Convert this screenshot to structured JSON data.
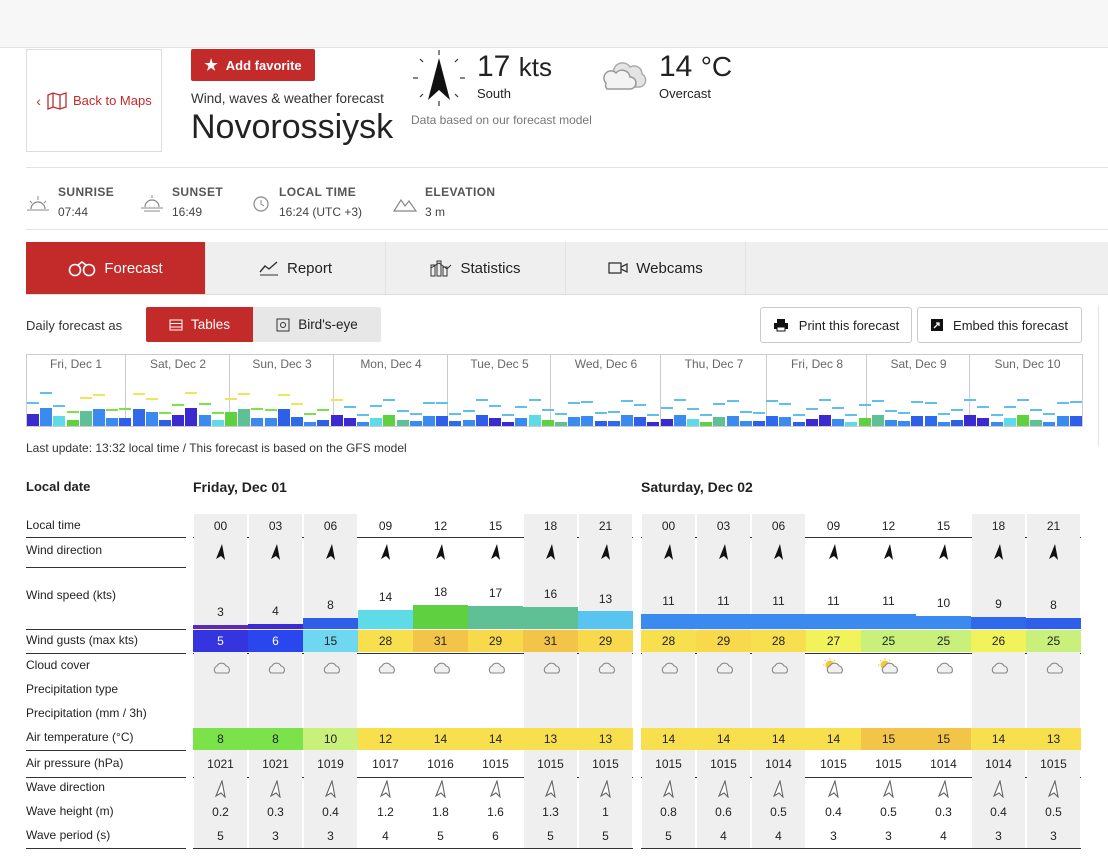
{
  "header": {
    "back_label": "Back to Maps",
    "favorite_label": "Add favorite",
    "subtitle": "Wind, waves & weather forecast",
    "city": "Novorossiysk",
    "wind_speed": "17",
    "wind_unit": "kts",
    "wind_direction": "South",
    "model_note": "Data based on our forecast model",
    "temperature": "14",
    "temp_unit": "°C",
    "condition": "Overcast"
  },
  "info": {
    "sunrise_label": "SUNRISE",
    "sunrise": "07:44",
    "sunset_label": "SUNSET",
    "sunset": "16:49",
    "localtime_label": "LOCAL TIME",
    "localtime": "16:24 (UTC +3)",
    "elevation_label": "ELEVATION",
    "elevation": "3 m"
  },
  "tabs": [
    "Forecast",
    "Report",
    "Statistics",
    "Webcams"
  ],
  "controls": {
    "daily_label": "Daily forecast as",
    "tables": "Tables",
    "birdseye": "Bird's-eye",
    "print": "Print this forecast",
    "embed": "Embed this forecast"
  },
  "overview_days": [
    "Fri, Dec 1",
    "Sat, Dec 2",
    "Sun, Dec 3",
    "Mon, Dec 4",
    "Tue, Dec 5",
    "Wed, Dec 6",
    "Thu, Dec 7",
    "Fri, Dec 8",
    "Sat, Dec 9",
    "Sun, Dec 10"
  ],
  "last_update": "Last update: 13:32 local time / This forecast is based on the GFS model",
  "table": {
    "local_date_label": "Local date",
    "row_labels": [
      "Local time",
      "Wind direction",
      "Wind speed (kts)",
      "Wind gusts (max kts)",
      "Cloud cover",
      "Precipitation type",
      "Precipitation (mm / 3h)",
      "Air temperature (°C)",
      "Air pressure (hPa)",
      "Wave direction",
      "Wave height (m)",
      "Wave period (s)"
    ],
    "days": [
      {
        "title": "Friday, Dec 01",
        "times": [
          "00",
          "03",
          "06",
          "09",
          "12",
          "15",
          "18",
          "21"
        ],
        "wind_speed": [
          3,
          4,
          8,
          14,
          18,
          17,
          16,
          13
        ],
        "gusts": [
          5,
          6,
          15,
          28,
          31,
          29,
          31,
          29
        ],
        "gust_colors": [
          "#3535e0",
          "#2a46ee",
          "#6fd8f0",
          "#f7df4e",
          "#f2c548",
          "#f7d94b",
          "#f2c548",
          "#f7d94b"
        ],
        "speed_colors": [
          "#5b2bb8",
          "#3b2bd0",
          "#2f5ee8",
          "#5fdbe8",
          "#5fd040",
          "#5fbf95",
          "#5fbf95",
          "#5ac4f0"
        ],
        "cloud": [
          "cloud",
          "cloud",
          "cloud",
          "cloud",
          "cloud",
          "cloud",
          "cloud",
          "cloud"
        ],
        "temp": [
          8,
          8,
          10,
          12,
          14,
          14,
          13,
          13
        ],
        "temp_colors": [
          "#7be24a",
          "#7be24a",
          "#c8f07a",
          "#f7df4e",
          "#f7df4e",
          "#f7df4e",
          "#f7df4e",
          "#f7df4e"
        ],
        "pressure": [
          1021,
          1021,
          1019,
          1017,
          1016,
          1015,
          1015,
          1015
        ],
        "wave_height": [
          "0.2",
          "0.3",
          "0.4",
          "1.2",
          "1.8",
          "1.6",
          "1.3",
          "1"
        ],
        "wave_period": [
          5,
          3,
          3,
          4,
          5,
          6,
          5,
          5
        ]
      },
      {
        "title": "Saturday, Dec 02",
        "times": [
          "00",
          "03",
          "06",
          "09",
          "12",
          "15",
          "18",
          "21"
        ],
        "wind_speed": [
          11,
          11,
          11,
          11,
          11,
          10,
          9,
          8
        ],
        "gusts": [
          28,
          29,
          28,
          27,
          25,
          25,
          26,
          25
        ],
        "gust_colors": [
          "#f7df4e",
          "#f7d94b",
          "#f7df4e",
          "#f2f25a",
          "#c8f07a",
          "#c8f07a",
          "#f2f25a",
          "#c8f07a"
        ],
        "speed_colors": [
          "#3a8af0",
          "#3a8af0",
          "#3a8af0",
          "#3a8af0",
          "#3a8af0",
          "#3a8af0",
          "#2f6aec",
          "#2f5ee8"
        ],
        "cloud": [
          "cloud",
          "cloud",
          "cloud",
          "sun",
          "sun",
          "cloud",
          "cloud",
          "cloud"
        ],
        "temp": [
          14,
          14,
          14,
          14,
          15,
          15,
          14,
          13
        ],
        "temp_colors": [
          "#f7df4e",
          "#f7df4e",
          "#f7df4e",
          "#f7df4e",
          "#f2c548",
          "#f2c548",
          "#f7df4e",
          "#f7df4e"
        ],
        "pressure": [
          1015,
          1015,
          1014,
          1015,
          1015,
          1014,
          1014,
          1015
        ],
        "wave_height": [
          "0.8",
          "0.6",
          "0.5",
          "0.4",
          "0.5",
          "0.3",
          "0.4",
          "0.5"
        ],
        "wave_period": [
          5,
          4,
          4,
          3,
          3,
          4,
          3,
          3
        ]
      }
    ]
  },
  "colors": {
    "accent": "#c32a2a"
  }
}
